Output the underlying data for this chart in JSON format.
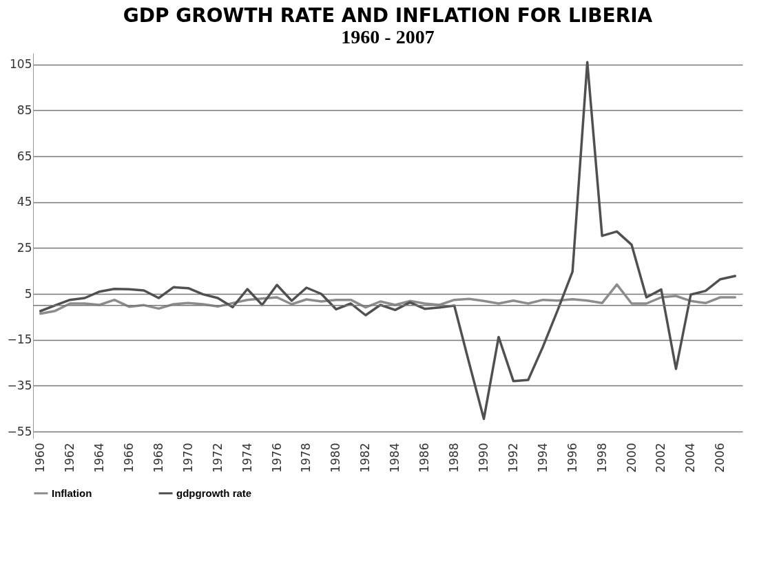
{
  "chart_data": {
    "type": "line",
    "title": "GDP GROWTH RATE AND INFLATION FOR LIBERIA",
    "subtitle": "1960 - 2007",
    "x": [
      1960,
      1961,
      1962,
      1963,
      1964,
      1965,
      1966,
      1967,
      1968,
      1969,
      1970,
      1971,
      1972,
      1973,
      1974,
      1975,
      1976,
      1977,
      1978,
      1979,
      1980,
      1981,
      1982,
      1983,
      1984,
      1985,
      1986,
      1987,
      1988,
      1989,
      1990,
      1991,
      1992,
      1993,
      1994,
      1995,
      1996,
      1997,
      1998,
      1999,
      2000,
      2001,
      2002,
      2003,
      2004,
      2005,
      2006,
      2007
    ],
    "series": [
      {
        "name": "Inflation",
        "color": "#8c8c8c",
        "values": [
          -3.6,
          -2.4,
          0.8,
          0.8,
          0.2,
          2.4,
          -0.6,
          0.1,
          -1.4,
          0.5,
          1,
          0.5,
          -0.5,
          1,
          2.4,
          3,
          3.5,
          0.5,
          2.6,
          1.7,
          2.4,
          2.4,
          -0.9,
          1.7,
          0.2,
          1.9,
          0.8,
          0.2,
          2.4,
          2.8,
          1.9,
          0.8,
          2.1,
          0.8,
          2.4,
          2.1,
          2.7,
          2.1,
          1,
          9.1,
          0.8,
          0.8,
          3.5,
          4.1,
          1.9,
          1,
          3.5,
          3.5
        ]
      },
      {
        "name": "gdpgrowth rate",
        "color": "#505050",
        "values": [
          -2.5,
          0,
          2.4,
          3.2,
          6,
          7.2,
          7,
          6.5,
          3.2,
          7.9,
          7.5,
          4.8,
          3.2,
          -0.8,
          7.1,
          0.2,
          8.9,
          2,
          7.7,
          5,
          -1.7,
          0.8,
          -4.3,
          0.2,
          -2,
          1.3,
          -1.5,
          -0.9,
          -0.1,
          -25,
          -49.5,
          -13.8,
          -33,
          -32.5,
          -18,
          -2,
          14.7,
          106,
          30.3,
          32.2,
          26.4,
          3.5,
          6.9,
          -27.7,
          4.7,
          6.3,
          11.4,
          12.8
        ]
      }
    ],
    "xlim": [
      1959.5,
      2007.5
    ],
    "xticks": [
      1960,
      1962,
      1964,
      1966,
      1968,
      1970,
      1972,
      1974,
      1976,
      1978,
      1980,
      1982,
      1984,
      1986,
      1988,
      1990,
      1992,
      1994,
      1996,
      1998,
      2000,
      2002,
      2004,
      2006
    ],
    "ylim": [
      -58,
      110
    ],
    "yticks": [
      -55,
      -35,
      -15,
      5,
      25,
      45,
      65,
      85,
      105
    ],
    "ref_lines": [
      {
        "axis": "y",
        "value": 0
      }
    ],
    "grid": "y",
    "legend": "bottom",
    "marker": "none",
    "line_style": "solid"
  }
}
